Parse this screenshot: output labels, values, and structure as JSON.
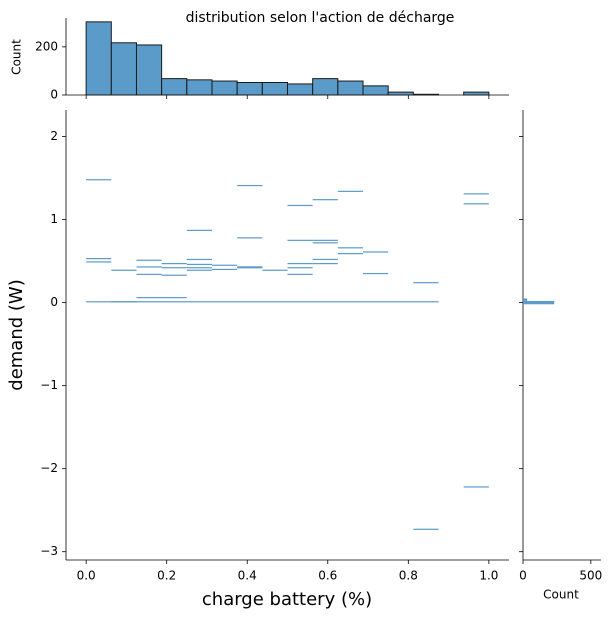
{
  "chart_data": {
    "type": "jointplot",
    "title": "distribution selon l'action de décharge",
    "x_label": "charge battery (%)",
    "y_label": "demand (W)",
    "color": "#5a9bc9",
    "edge_color": "#1a1a1a",
    "xlim": [
      -0.05,
      1.05
    ],
    "xticks": [
      {
        "value": 0,
        "label": "0.0"
      },
      0.2,
      0.4,
      0.6,
      0.8,
      {
        "value": 1,
        "label": "1.0"
      }
    ],
    "ylim": [
      -3.1,
      2.32
    ],
    "yticks": [
      {
        "value": -3,
        "label": "−3"
      },
      {
        "value": -2,
        "label": "−2"
      },
      {
        "value": -1,
        "label": "−1"
      },
      0,
      1,
      2
    ],
    "cells": {
      "x0": [
        0,
        0.25,
        0.375,
        0.25,
        0.375,
        0.5,
        0.5625,
        0.625,
        0.9375,
        0.9375,
        0.25,
        0.375,
        0.5,
        0.5625,
        0.5625,
        0.625,
        0.625,
        0.6875,
        0.6875,
        0,
        0,
        0.0625,
        0.125,
        0.125,
        0.125,
        0.1875,
        0.1875,
        0.1875,
        0.25,
        0.25,
        0.25,
        0.3125,
        0.3125,
        0.375,
        0.4375,
        0.5,
        0.5,
        0.5,
        0.5625,
        0.5625,
        0.8125,
        0.8125,
        0.9375,
        0,
        0.0625,
        0.125
      ],
      "x1": [
        0.0625,
        0.1875,
        0.4375,
        0.3125,
        0.4375,
        0.5625,
        0.625,
        0.6875,
        1,
        1,
        0.3125,
        0.4375,
        0.5625,
        0.625,
        0.625,
        0.6875,
        0.6875,
        0.75,
        0.75,
        0.0625,
        0.0625,
        0.125,
        0.1875,
        0.1875,
        0.1875,
        0.25,
        0.25,
        0.25,
        0.3125,
        0.3125,
        0.3125,
        0.375,
        0.375,
        0.4375,
        0.5,
        0.5625,
        0.5625,
        0.5625,
        0.625,
        0.625,
        0.875,
        0.875,
        1,
        0.875,
        0.125,
        0.25
      ],
      "y": [
        1.48,
        1.5,
        1.41,
        0.87,
        0.78,
        1.17,
        1.24,
        1.34,
        1.31,
        1.19,
        0.52,
        0.43,
        0.75,
        0.75,
        0.72,
        0.66,
        0.59,
        0.61,
        0.35,
        0.53,
        0.49,
        0.39,
        0.51,
        0.43,
        0.34,
        0.47,
        0.42,
        0.33,
        0.46,
        0.39,
        0.42,
        0.45,
        0.4,
        0.42,
        0.39,
        0.47,
        0.42,
        0.34,
        0.52,
        0.47,
        0.24,
        -2.73,
        -2.22,
        0.01,
        0.01,
        0.06
      ]
    },
    "top_hist": {
      "y_label": "Count",
      "bins": [
        0,
        0.0625,
        0.125,
        0.1875,
        0.25,
        0.3125,
        0.375,
        0.4375,
        0.5,
        0.5625,
        0.625,
        0.6875,
        0.75,
        0.8125,
        0.875,
        0.9375,
        1
      ],
      "counts": [
        304,
        217,
        208,
        68,
        63,
        58,
        52,
        52,
        46,
        68,
        58,
        38,
        12,
        3,
        0,
        12
      ],
      "ylim": [
        0,
        320
      ],
      "yticks": [
        0,
        200
      ]
    },
    "right_hist": {
      "x_label": "Count",
      "bins": [
        -0.02,
        0.02,
        0.05
      ],
      "counts": [
        230,
        30
      ],
      "xlim": [
        0,
        575
      ],
      "xticks": [
        0,
        500
      ]
    }
  }
}
